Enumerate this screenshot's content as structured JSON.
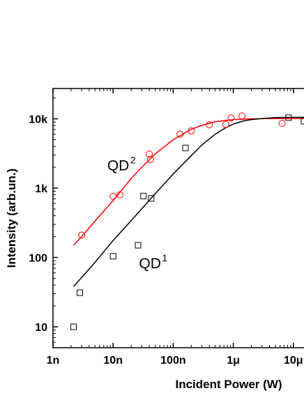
{
  "chart_data": {
    "type": "scatter",
    "xlabel": "Incident Power (W)",
    "ylabel": "Intensity (arb.un.)",
    "xscale": "log",
    "yscale": "log",
    "xlim": [
      1e-09,
      1.6e-05
    ],
    "ylim": [
      5,
      30000
    ],
    "xticks": [
      {
        "value": 1e-09,
        "label": "1n"
      },
      {
        "value": 1e-08,
        "label": "10n"
      },
      {
        "value": 1e-07,
        "label": "100n"
      },
      {
        "value": 1e-06,
        "label": "1μ"
      },
      {
        "value": 1e-05,
        "label": "10μ"
      }
    ],
    "yticks": [
      {
        "value": 10,
        "label": "10"
      },
      {
        "value": 100,
        "label": "100"
      },
      {
        "value": 1000,
        "label": "1k"
      },
      {
        "value": 10000,
        "label": "10k"
      }
    ],
    "grid": false,
    "series": [
      {
        "marker": "circle",
        "color": "#ff0000",
        "points": [
          [
            3e-09,
            210
          ],
          [
            1e-08,
            760
          ],
          [
            1.3e-08,
            800
          ],
          [
            4e-08,
            3100
          ],
          [
            4.2e-08,
            2600
          ],
          [
            1.3e-07,
            6000
          ],
          [
            2e-07,
            6700
          ],
          [
            4e-07,
            8200
          ],
          [
            7.5e-07,
            8300
          ],
          [
            9.2e-07,
            10300
          ],
          [
            1.4e-06,
            11000
          ],
          [
            6.5e-06,
            8600
          ]
        ]
      },
      {
        "marker": "square",
        "color": "#000000",
        "points": [
          [
            2.2e-09,
            10
          ],
          [
            2.8e-09,
            31
          ],
          [
            1e-08,
            104
          ],
          [
            2.6e-08,
            150
          ],
          [
            3.2e-08,
            770
          ],
          [
            4.3e-08,
            710
          ],
          [
            1.6e-07,
            3800
          ],
          [
            8.3e-06,
            10400
          ],
          [
            1.5e-05,
            9200
          ]
        ]
      }
    ],
    "fits": [
      {
        "color": "#ff0000",
        "points": [
          [
            2.2e-09,
            150
          ],
          [
            3e-09,
            200
          ],
          [
            5e-09,
            335
          ],
          [
            1e-08,
            660
          ],
          [
            2e-08,
            1380
          ],
          [
            3e-08,
            2000
          ],
          [
            5e-08,
            3100
          ],
          [
            1e-07,
            5000
          ],
          [
            2e-07,
            7050
          ],
          [
            3e-07,
            8050
          ],
          [
            5e-07,
            9100
          ],
          [
            1e-06,
            9750
          ],
          [
            2e-06,
            10000
          ],
          [
            5e-06,
            10100
          ],
          [
            1e-05,
            10100
          ],
          [
            1.6e-05,
            10100
          ]
        ]
      },
      {
        "color": "#000000",
        "points": [
          [
            2.2e-09,
            38
          ],
          [
            5e-09,
            85
          ],
          [
            1e-08,
            175
          ],
          [
            2e-08,
            340
          ],
          [
            5e-08,
            830
          ],
          [
            1e-07,
            1600
          ],
          [
            2e-07,
            2950
          ],
          [
            3e-07,
            4200
          ],
          [
            5e-07,
            6000
          ],
          [
            7e-07,
            7200
          ],
          [
            1e-06,
            8400
          ],
          [
            1.5e-06,
            9350
          ],
          [
            2e-06,
            9750
          ],
          [
            3e-06,
            10100
          ],
          [
            5e-06,
            10400
          ],
          [
            1e-05,
            10500
          ],
          [
            1.6e-05,
            10500
          ]
        ]
      }
    ],
    "annotations": [
      {
        "text": "QD",
        "sup": "2",
        "x": 8e-09,
        "y": 1800
      },
      {
        "text": "QD",
        "sup": "1",
        "x": 2.7e-08,
        "y": 70
      }
    ]
  }
}
